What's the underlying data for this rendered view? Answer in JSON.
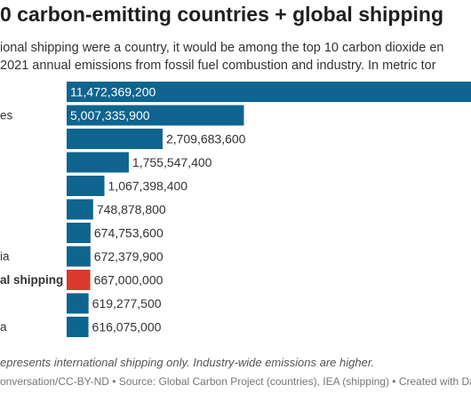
{
  "header": {
    "title": "0 carbon-emitting countries + global shipping",
    "subtitle_line1": "ional shipping were a country, it would be among the top 10 carbon dioxide en",
    "subtitle_line2": "2021 annual emissions from fossil fuel combustion and industry. In metric tor"
  },
  "footer": {
    "footnote": "epresents international shipping only. Industry-wide emissions are higher.",
    "source": "onversation/CC-BY-ND • Source: Global Carbon Project (countries), IEA (shipping) • Created with Da"
  },
  "colors": {
    "bar": "#0f6490",
    "highlight": "#d93a2b",
    "inside_label": "#ffffff",
    "outside_label": "#333333"
  },
  "chart_data": {
    "type": "bar",
    "orientation": "horizontal",
    "categories": [
      "",
      "es",
      "",
      "",
      "",
      "",
      "",
      "ia",
      "al shipping",
      "",
      "a"
    ],
    "values": [
      11472369200,
      5007335900,
      2709683600,
      1755547400,
      1067398400,
      748878800,
      674753600,
      672379900,
      667000000,
      619277500,
      616075000
    ],
    "value_labels": [
      "11,472,369,200",
      "5,007,335,900",
      "2,709,683,600",
      "1,755,547,400",
      "1,067,398,400",
      "748,878,800",
      "674,753,600",
      "672,379,900",
      "667,000,000",
      "619,277,500",
      "616,075,000"
    ],
    "highlight_index": 8,
    "title": "",
    "xlabel": "",
    "ylabel": "",
    "xlim": [
      0,
      11472369200
    ],
    "grid": false,
    "legend": "none"
  }
}
